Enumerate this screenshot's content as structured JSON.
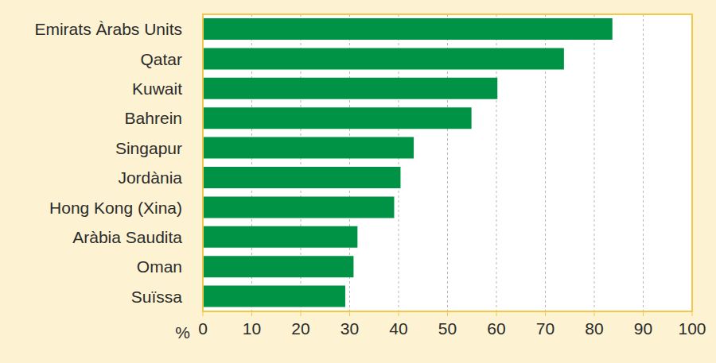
{
  "chart_data": {
    "type": "bar",
    "orientation": "horizontal",
    "xlabel": "%",
    "categories": [
      "Emirats Àrabs Units",
      "Qatar",
      "Kuwait",
      "Bahrein",
      "Singapur",
      "Jordània",
      "Hong Kong (Xina)",
      "Aràbia Saudita",
      "Oman",
      "Suïssa"
    ],
    "values": [
      83.7,
      73.8,
      60.2,
      54.9,
      43.1,
      40.4,
      39.1,
      31.6,
      30.8,
      29.1
    ],
    "color": "#009245",
    "xlim": [
      0,
      100
    ],
    "xticks": [
      0,
      10,
      20,
      30,
      40,
      50,
      60,
      70,
      80,
      90,
      100
    ],
    "grid": true
  }
}
